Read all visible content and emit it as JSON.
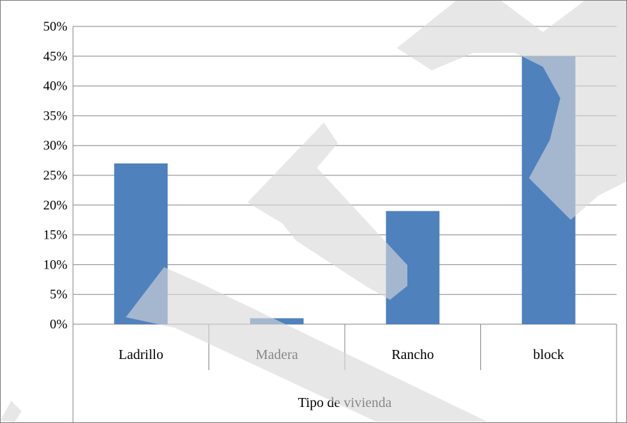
{
  "chart_data": {
    "type": "bar",
    "categories": [
      "Ladrillo",
      "Madera",
      "Rancho",
      "block"
    ],
    "values": [
      27,
      1,
      19,
      45
    ],
    "value_unit": "%",
    "xlabel": "Tipo de vivienda",
    "ylabel": "",
    "ylim": [
      0,
      50
    ],
    "yticks": [
      "0%",
      "5%",
      "10%",
      "15%",
      "20%",
      "25%",
      "30%",
      "35%",
      "40%",
      "45%",
      "50%"
    ],
    "grid": true,
    "legend": "none",
    "colors": {
      "bar": "#4F81BD",
      "grid": "#868686",
      "watermark": "#D9D9D9"
    }
  }
}
